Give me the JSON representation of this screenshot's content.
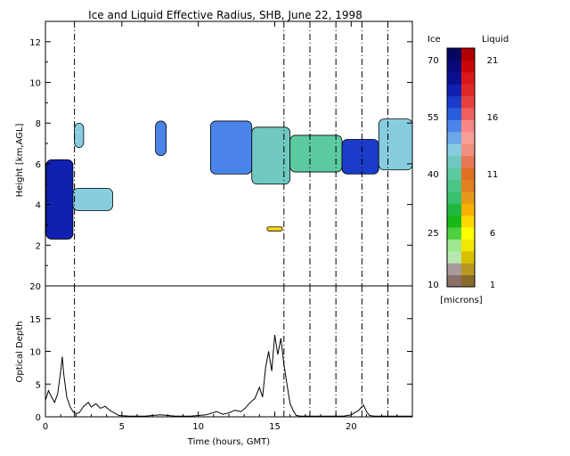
{
  "chart_data": [
    {
      "type": "heatmap",
      "title": "Ice and Liquid Effective Radius, SHB, June 22, 1998",
      "xlabel": "",
      "ylabel": "Height [km,AGL]",
      "xlim": [
        0,
        24
      ],
      "ylim": [
        0,
        13
      ],
      "x_ticks": [
        "0",
        "5",
        "10",
        "15",
        "20"
      ],
      "y_ticks": [
        "2",
        "4",
        "6",
        "8",
        "10",
        "12"
      ],
      "dashed_lines_hours": [
        1.9,
        15.6,
        17.3,
        19.0,
        20.7,
        22.4
      ],
      "regions": [
        {
          "phase": "ice",
          "t0": 0.05,
          "t1": 1.8,
          "h0": 2.3,
          "h1": 6.2,
          "value": 60
        },
        {
          "phase": "ice",
          "t0": 1.8,
          "t1": 4.4,
          "h0": 3.7,
          "h1": 4.8,
          "value": 45
        },
        {
          "phase": "ice",
          "t0": 1.9,
          "t1": 2.5,
          "h0": 6.8,
          "h1": 8.0,
          "value": 45
        },
        {
          "phase": "ice",
          "t0": 7.2,
          "t1": 7.9,
          "h0": 6.4,
          "h1": 8.1,
          "value": 50
        },
        {
          "phase": "ice",
          "t0": 10.8,
          "t1": 13.5,
          "h0": 5.5,
          "h1": 8.1,
          "value": 50
        },
        {
          "phase": "ice",
          "t0": 13.5,
          "t1": 16.0,
          "h0": 5.0,
          "h1": 7.8,
          "value": 40
        },
        {
          "phase": "ice",
          "t0": 16.0,
          "t1": 19.4,
          "h0": 5.6,
          "h1": 7.4,
          "value": 38
        },
        {
          "phase": "ice",
          "t0": 19.4,
          "t1": 21.8,
          "h0": 5.5,
          "h1": 7.2,
          "value": 58
        },
        {
          "phase": "ice",
          "t0": 21.8,
          "t1": 24.0,
          "h0": 5.7,
          "h1": 8.2,
          "value": 45
        },
        {
          "phase": "liquid",
          "t0": 14.5,
          "t1": 15.5,
          "h0": 2.7,
          "h1": 2.9,
          "value": 6
        }
      ],
      "colorbar": {
        "left_label": "Ice",
        "right_label": "Liquid",
        "units": "[microns]",
        "ice_ticks": [
          "10",
          "25",
          "40",
          "55",
          "70"
        ],
        "liquid_ticks": [
          "1",
          "6",
          "11",
          "16",
          "21"
        ],
        "ice_colors": [
          "#8c6e6a",
          "#a89a9a",
          "#b8e8b0",
          "#9ee890",
          "#50d040",
          "#18b818",
          "#20b840",
          "#38c070",
          "#4cc488",
          "#5ccaa0",
          "#70c8c0",
          "#88cce0",
          "#6aa8e8",
          "#4a84e8",
          "#2a5cdc",
          "#1a3cc8",
          "#1020b0",
          "#0a1090",
          "#080878",
          "#060660"
        ],
        "liquid_colors": [
          "#8a6a28",
          "#b89820",
          "#d8c000",
          "#f0e800",
          "#ffff00",
          "#ffd800",
          "#f8b000",
          "#e89818",
          "#e08020",
          "#e07020",
          "#e87858",
          "#f09080",
          "#f8a098",
          "#f88888",
          "#f06060",
          "#e84040",
          "#e02828",
          "#d81818",
          "#c80808",
          "#b00000"
        ]
      }
    },
    {
      "type": "line",
      "title": "",
      "xlabel": "Time (hours, GMT)",
      "ylabel": "Optical Depth",
      "xlim": [
        0,
        24
      ],
      "ylim": [
        0,
        20
      ],
      "x_ticks": [
        "0",
        "5",
        "10",
        "15",
        "20"
      ],
      "y_ticks": [
        "0",
        "5",
        "10",
        "15",
        "20"
      ],
      "dashed_lines_hours": [
        1.9,
        15.6,
        17.3,
        19.0,
        20.7,
        22.4
      ],
      "x": [
        0.0,
        0.2,
        0.4,
        0.6,
        0.8,
        1.0,
        1.1,
        1.2,
        1.4,
        1.6,
        1.8,
        2.0,
        2.2,
        2.5,
        2.8,
        3.0,
        3.3,
        3.6,
        3.9,
        4.2,
        4.5,
        4.8,
        5.5,
        6.5,
        7.5,
        8.5,
        9.5,
        10.5,
        11.2,
        11.6,
        12.0,
        12.4,
        12.8,
        13.1,
        13.4,
        13.7,
        14.0,
        14.2,
        14.4,
        14.6,
        14.8,
        15.0,
        15.2,
        15.4,
        15.6,
        15.8,
        16.0,
        16.2,
        16.4,
        16.7,
        17.0,
        17.5,
        18.0,
        18.5,
        19.0,
        19.5,
        20.0,
        20.5,
        20.8,
        21.0,
        21.2,
        21.5,
        22.0,
        22.5,
        23.0,
        23.5,
        24.0
      ],
      "y": [
        2.5,
        4.0,
        3.0,
        2.2,
        3.5,
        7.0,
        9.2,
        6.5,
        3.0,
        1.6,
        0.8,
        0.5,
        0.6,
        1.6,
        2.2,
        1.5,
        2.0,
        1.3,
        1.6,
        1.0,
        0.6,
        0.2,
        0.1,
        0.1,
        0.3,
        0.1,
        0.1,
        0.3,
        0.8,
        0.4,
        0.6,
        1.0,
        0.8,
        1.4,
        2.2,
        2.8,
        4.5,
        3.0,
        7.5,
        10.0,
        7.0,
        12.5,
        9.5,
        12.0,
        8.0,
        5.0,
        2.0,
        1.0,
        0.2,
        0.1,
        0.1,
        0.1,
        0.1,
        0.1,
        0.1,
        0.1,
        0.3,
        1.0,
        1.8,
        0.8,
        0.2,
        0.1,
        0.1,
        0.1,
        0.1,
        0.1,
        0.1
      ]
    }
  ]
}
